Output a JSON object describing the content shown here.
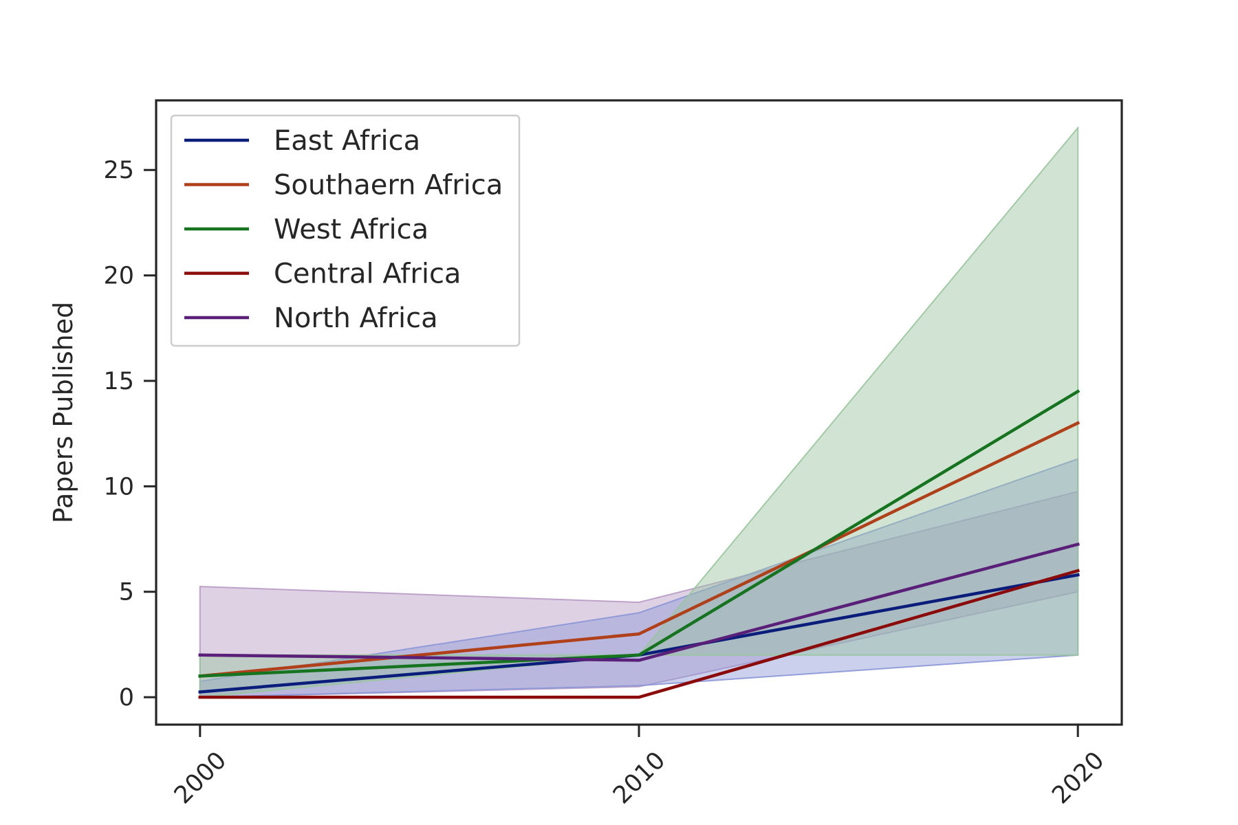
{
  "chart_data": {
    "type": "line",
    "title": "",
    "xlabel": "",
    "ylabel": "Papers Published",
    "x": [
      2000,
      2010,
      2020
    ],
    "x_tick_labels": [
      "2000",
      "2010",
      "2020"
    ],
    "y_ticks": [
      0,
      5,
      10,
      15,
      20,
      25
    ],
    "y_tick_labels": [
      "0",
      "5",
      "10",
      "15",
      "20",
      "25"
    ],
    "xlim": [
      1999,
      2021
    ],
    "ylim": [
      -1.3,
      28.3
    ],
    "grid": false,
    "legend_position": "upper-left",
    "series": [
      {
        "name": "East Africa",
        "color": "#0b1d7a",
        "values": [
          0.25,
          2.0,
          5.8
        ],
        "ci_lower": [
          0.0,
          0.55,
          2.0
        ],
        "ci_upper": [
          0.75,
          4.0,
          11.3
        ]
      },
      {
        "name": "Southaern Africa",
        "color": "#b0401a",
        "values": [
          1.0,
          3.0,
          13.0
        ],
        "ci_lower": null,
        "ci_upper": null
      },
      {
        "name": "West Africa",
        "color": "#16731f",
        "values": [
          1.0,
          2.0,
          14.5
        ],
        "ci_lower": [
          0.0,
          2.0,
          2.0
        ],
        "ci_upper": [
          2.0,
          2.0,
          27.0
        ]
      },
      {
        "name": "Central Africa",
        "color": "#8b0a0a",
        "values": [
          0.0,
          0.0,
          6.0
        ],
        "ci_lower": null,
        "ci_upper": null
      },
      {
        "name": "North Africa",
        "color": "#5a1f78",
        "values": [
          2.0,
          1.75,
          7.25
        ],
        "ci_lower": [
          0.0,
          0.5,
          5.0
        ],
        "ci_upper": [
          5.25,
          4.5,
          9.75
        ]
      }
    ],
    "bands": [
      {
        "series": "North Africa",
        "fill": "#b79ac4",
        "opacity": 0.45
      },
      {
        "series": "East Africa",
        "fill": "#8b96d6",
        "opacity": 0.45
      },
      {
        "series": "West Africa",
        "fill": "#9ac49f",
        "opacity": 0.45
      }
    ]
  }
}
